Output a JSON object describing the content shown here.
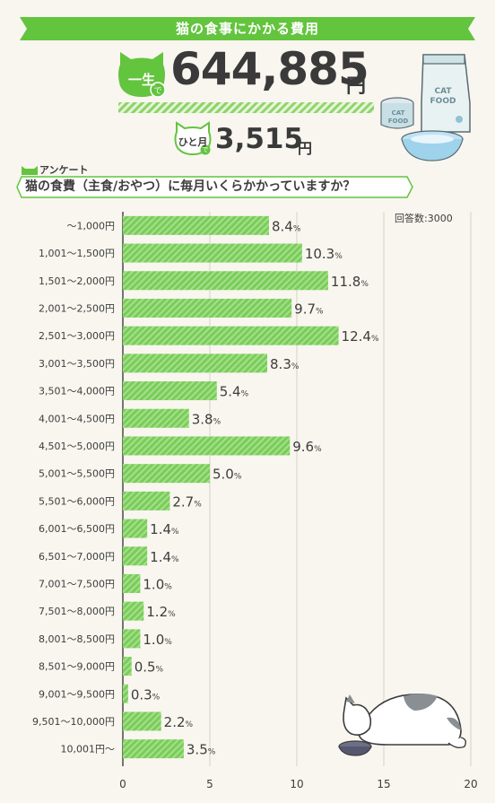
{
  "title": "猫の食事にかかる費用",
  "lifetime": {
    "badge": "一生",
    "badge_suffix": "で",
    "value": "644,885",
    "unit": "円"
  },
  "monthly": {
    "badge": "ひと月",
    "badge_suffix": "で",
    "value": "3,515",
    "unit": "円"
  },
  "illustration": {
    "food_bag_text": "CAT FOOD",
    "can_text": "CAT FOOD"
  },
  "survey": {
    "tag": "アンケート",
    "question": "猫の食費（主食/おやつ）に毎月いくらかかっていますか？",
    "respondents": "回答数:3000"
  },
  "colors": {
    "accent_green": "#63c43e",
    "bar_green": "#79cd5a",
    "bar_stripe": "#a6df8b",
    "background": "#f8f6ef"
  },
  "chart_data": {
    "type": "bar",
    "orientation": "horizontal",
    "categories": [
      "〜1,000円",
      "1,001〜1,500円",
      "1,501〜2,000円",
      "2,001〜2,500円",
      "2,501〜3,000円",
      "3,001〜3,500円",
      "3,501〜4,000円",
      "4,001〜4,500円",
      "4,501〜5,000円",
      "5,001〜5,500円",
      "5,501〜6,000円",
      "6,001〜6,500円",
      "6,501〜7,000円",
      "7,001〜7,500円",
      "7,501〜8,000円",
      "8,001〜8,500円",
      "8,501〜9,000円",
      "9,001〜9,500円",
      "9,501〜10,000円",
      "10,001円〜"
    ],
    "values": [
      8.4,
      10.3,
      11.8,
      9.7,
      12.4,
      8.3,
      5.4,
      3.8,
      9.6,
      5.0,
      2.7,
      1.4,
      1.4,
      1.0,
      1.2,
      1.0,
      0.5,
      0.3,
      2.2,
      3.5
    ],
    "value_labels": [
      "8.4",
      "10.3",
      "11.8",
      "9.7",
      "12.4",
      "8.3",
      "5.4",
      "3.8",
      "9.6",
      "5.0",
      "2.7",
      "1.4",
      "1.4",
      "1.0",
      "1.2",
      "1.0",
      "0.5",
      "0.3",
      "2.2",
      "3.5"
    ],
    "value_suffix": "%",
    "xlim": [
      0,
      20
    ],
    "xticks": [
      0,
      5,
      10,
      15,
      20
    ],
    "grid": true,
    "xlabel": "",
    "ylabel": ""
  }
}
